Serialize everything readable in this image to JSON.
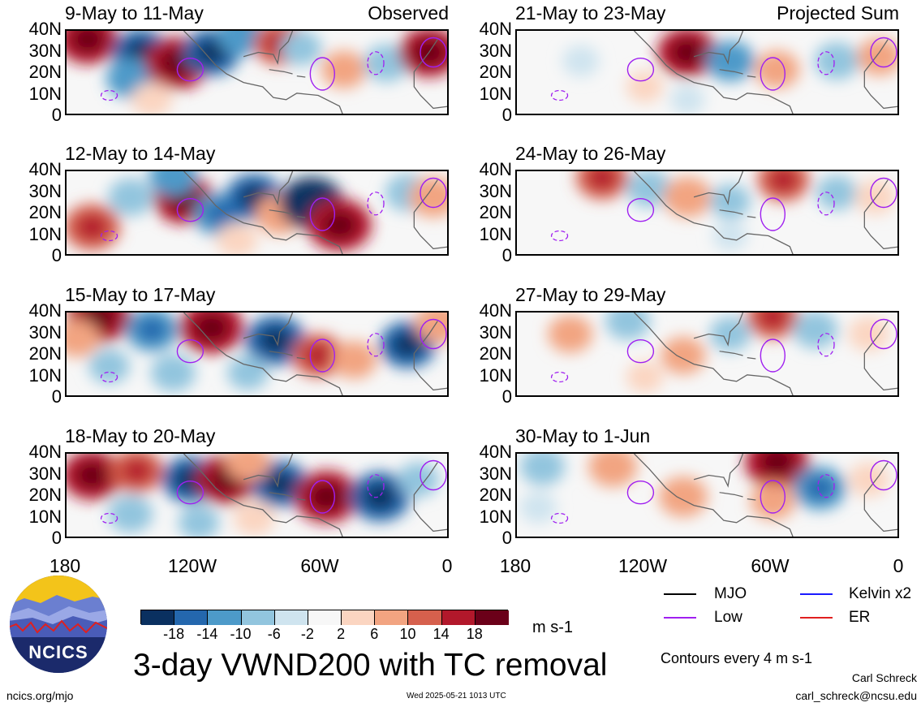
{
  "figure": {
    "title": "3-day VWND200 with TC removal",
    "units": "m s-1",
    "contour_note": "Contours every 4 m s-1",
    "timestamp": "Wed 2025-05-21 1013 UTC",
    "website": "ncics.org/mjo",
    "author": "Carl Schreck",
    "email": "carl_schreck@ncsu.edu",
    "logo_text": "NCICS"
  },
  "columns": {
    "left_label": "Observed",
    "right_label": "Projected Sum"
  },
  "legend": [
    {
      "label": "MJO",
      "color": "#000000"
    },
    {
      "label": "Kelvin x2",
      "color": "#1a1aff"
    },
    {
      "label": "Low",
      "color": "#a020f0"
    },
    {
      "label": "ER",
      "color": "#e02020"
    }
  ],
  "colorbar": {
    "colors": [
      "#0a3060",
      "#2467ad",
      "#4d9ac9",
      "#92c5de",
      "#cfe4ef",
      "#f7f7f7",
      "#fbd5c1",
      "#f2a481",
      "#d6604d",
      "#b2182b",
      "#6b0019"
    ],
    "tick_labels": [
      "-18",
      "-14",
      "-10",
      "-6",
      "-2",
      "2",
      "6",
      "10",
      "14",
      "18"
    ]
  },
  "chart_data": {
    "type": "heatmap",
    "variable": "VWND200",
    "x_tick_labels": [
      "180",
      "120W",
      "60W",
      "0"
    ],
    "y_tick_labels": [
      "0",
      "10N",
      "20N",
      "30N",
      "40N"
    ],
    "xlim": [
      -180,
      0
    ],
    "ylim": [
      0,
      40
    ],
    "panels_observed": [
      {
        "label": "9-May to 11-May",
        "fields": [
          {
            "lon": -170,
            "lat": 36,
            "v": 16
          },
          {
            "lon": -145,
            "lat": 30,
            "v": -14
          },
          {
            "lon": -150,
            "lat": 18,
            "v": -10
          },
          {
            "lon": -128,
            "lat": 25,
            "v": 18
          },
          {
            "lon": -112,
            "lat": 30,
            "v": -14
          },
          {
            "lon": -98,
            "lat": 38,
            "v": -10
          },
          {
            "lon": -80,
            "lat": 34,
            "v": 12
          },
          {
            "lon": -70,
            "lat": 32,
            "v": -6
          },
          {
            "lon": -50,
            "lat": 22,
            "v": 8
          },
          {
            "lon": -30,
            "lat": 25,
            "v": -8
          },
          {
            "lon": -10,
            "lat": 30,
            "v": 16
          },
          {
            "lon": -140,
            "lat": 8,
            "v": 6
          }
        ]
      },
      {
        "label": "12-May to 14-May",
        "fields": [
          {
            "lon": -168,
            "lat": 14,
            "v": 14
          },
          {
            "lon": -150,
            "lat": 28,
            "v": -8
          },
          {
            "lon": -125,
            "lat": 27,
            "v": 16
          },
          {
            "lon": -108,
            "lat": 20,
            "v": -12
          },
          {
            "lon": -92,
            "lat": 28,
            "v": -14
          },
          {
            "lon": -80,
            "lat": 20,
            "v": 10
          },
          {
            "lon": -65,
            "lat": 25,
            "v": -18
          },
          {
            "lon": -52,
            "lat": 15,
            "v": 18
          },
          {
            "lon": -130,
            "lat": 38,
            "v": -10
          },
          {
            "lon": -20,
            "lat": 30,
            "v": -8
          },
          {
            "lon": -8,
            "lat": 28,
            "v": 10
          },
          {
            "lon": -100,
            "lat": 8,
            "v": 6
          }
        ]
      },
      {
        "label": "15-May to 17-May",
        "fields": [
          {
            "lon": -165,
            "lat": 38,
            "v": 18
          },
          {
            "lon": -140,
            "lat": 32,
            "v": -12
          },
          {
            "lon": -112,
            "lat": 33,
            "v": 18
          },
          {
            "lon": -82,
            "lat": 27,
            "v": -16
          },
          {
            "lon": -62,
            "lat": 20,
            "v": 12
          },
          {
            "lon": -45,
            "lat": 18,
            "v": 8
          },
          {
            "lon": -20,
            "lat": 25,
            "v": -14
          },
          {
            "lon": -160,
            "lat": 15,
            "v": -6
          },
          {
            "lon": -130,
            "lat": 12,
            "v": -8
          },
          {
            "lon": -95,
            "lat": 12,
            "v": -6
          },
          {
            "lon": -175,
            "lat": 28,
            "v": 8
          },
          {
            "lon": -5,
            "lat": 35,
            "v": 10
          }
        ]
      },
      {
        "label": "18-May to 20-May",
        "fields": [
          {
            "lon": -168,
            "lat": 30,
            "v": 16
          },
          {
            "lon": -147,
            "lat": 32,
            "v": 12
          },
          {
            "lon": -122,
            "lat": 28,
            "v": -14
          },
          {
            "lon": -105,
            "lat": 28,
            "v": 16
          },
          {
            "lon": -80,
            "lat": 26,
            "v": -14
          },
          {
            "lon": -58,
            "lat": 20,
            "v": 18
          },
          {
            "lon": -33,
            "lat": 20,
            "v": -16
          },
          {
            "lon": -150,
            "lat": 12,
            "v": -8
          },
          {
            "lon": -118,
            "lat": 8,
            "v": -6
          },
          {
            "lon": -92,
            "lat": 10,
            "v": 6
          },
          {
            "lon": -15,
            "lat": 28,
            "v": -6
          },
          {
            "lon": -95,
            "lat": 36,
            "v": 8
          }
        ]
      }
    ],
    "panels_projected": [
      {
        "label": "21-May to 23-May",
        "fields": [
          {
            "lon": -100,
            "lat": 30,
            "v": 16
          },
          {
            "lon": -80,
            "lat": 26,
            "v": -10
          },
          {
            "lon": -58,
            "lat": 22,
            "v": 8
          },
          {
            "lon": -30,
            "lat": 26,
            "v": -8
          },
          {
            "lon": -10,
            "lat": 28,
            "v": 8
          },
          {
            "lon": -150,
            "lat": 26,
            "v": -4
          },
          {
            "lon": -120,
            "lat": 14,
            "v": 4
          },
          {
            "lon": -100,
            "lat": 8,
            "v": -3
          }
        ]
      },
      {
        "label": "24-May to 26-May",
        "fields": [
          {
            "lon": -140,
            "lat": 37,
            "v": 12
          },
          {
            "lon": -118,
            "lat": 32,
            "v": -8
          },
          {
            "lon": -100,
            "lat": 28,
            "v": 10
          },
          {
            "lon": -80,
            "lat": 26,
            "v": -6
          },
          {
            "lon": -55,
            "lat": 36,
            "v": 12
          },
          {
            "lon": -30,
            "lat": 30,
            "v": -6
          },
          {
            "lon": -12,
            "lat": 28,
            "v": 6
          },
          {
            "lon": -80,
            "lat": 10,
            "v": -3
          }
        ]
      },
      {
        "label": "27-May to 29-May",
        "fields": [
          {
            "lon": -155,
            "lat": 30,
            "v": 8
          },
          {
            "lon": -128,
            "lat": 36,
            "v": -8
          },
          {
            "lon": -102,
            "lat": 20,
            "v": 8
          },
          {
            "lon": -80,
            "lat": 30,
            "v": -6
          },
          {
            "lon": -60,
            "lat": 38,
            "v": 12
          },
          {
            "lon": -40,
            "lat": 32,
            "v": -8
          },
          {
            "lon": -15,
            "lat": 30,
            "v": 6
          },
          {
            "lon": -120,
            "lat": 10,
            "v": 4
          }
        ]
      },
      {
        "label": "30-May to 1-Jun",
        "fields": [
          {
            "lon": -168,
            "lat": 34,
            "v": -8
          },
          {
            "lon": -135,
            "lat": 34,
            "v": 10
          },
          {
            "lon": -102,
            "lat": 20,
            "v": 10
          },
          {
            "lon": -58,
            "lat": 36,
            "v": 18
          },
          {
            "lon": -38,
            "lat": 24,
            "v": -12
          },
          {
            "lon": -15,
            "lat": 28,
            "v": 6
          },
          {
            "lon": -60,
            "lat": 18,
            "v": 8
          },
          {
            "lon": -170,
            "lat": 15,
            "v": -4
          }
        ]
      }
    ]
  }
}
